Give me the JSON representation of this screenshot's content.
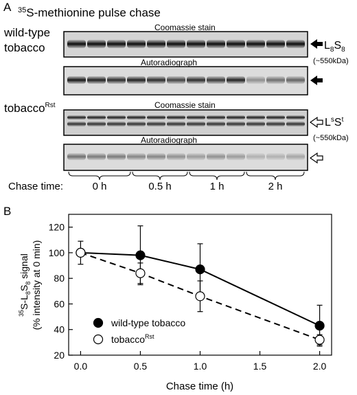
{
  "panel_a": {
    "label": "A",
    "title_sup": "35",
    "title_rest": "S-methionine pulse chase",
    "wildtype_line1": "wild-type",
    "wildtype_line2": "tobacco",
    "mutant_base": "tobacco",
    "mutant_sup": "Rst",
    "strip_labels": [
      "Coomassie stain",
      "Autoradiograph",
      "Coomassie stain",
      "Autoradiograph"
    ],
    "marker_wt_L": "L",
    "marker_wt_sub": "8",
    "marker_wt_S": "S",
    "marker_mut_L": "L",
    "marker_mut_sup1": "s",
    "marker_mut_S": "S",
    "marker_mut_sup2": "t",
    "size_label": "(~550kDa)",
    "chase_label": "Chase time:",
    "chase_groups": [
      "0 h",
      "0.5 h",
      "1 h",
      "2 h"
    ],
    "band_intensity": {
      "wt_coomassie": [
        0.95,
        0.95,
        0.95,
        0.95,
        0.95,
        0.95,
        0.95,
        0.95,
        0.95,
        0.95,
        0.95,
        0.95
      ],
      "wt_autoradiograph": [
        0.9,
        0.85,
        0.8,
        0.85,
        0.8,
        0.7,
        0.8,
        0.75,
        0.85,
        0.35,
        0.5,
        0.55
      ],
      "mut_coomassie": [
        0.85,
        0.85,
        0.85,
        0.85,
        0.85,
        0.85,
        0.85,
        0.85,
        0.85,
        0.85,
        0.85,
        0.85
      ],
      "mut_autoradiograph": [
        0.5,
        0.45,
        0.45,
        0.4,
        0.4,
        0.35,
        0.3,
        0.35,
        0.3,
        0.2,
        0.2,
        0.25
      ]
    }
  },
  "panel_b": {
    "label": "B"
  },
  "chart_data": {
    "type": "scatter",
    "ylabel_line1_sup": "35",
    "ylabel_line1_a": "S-L",
    "ylabel_line1_sub1": "8",
    "ylabel_line1_b": "S",
    "ylabel_line1_sub2": "8",
    "ylabel_line1_c": " signal",
    "ylabel_line2": "(% intensity at 0 min)",
    "xlabel": "Chase time (h)",
    "xlim": [
      -0.1,
      2.1
    ],
    "ylim": [
      20,
      130
    ],
    "xticks": [
      "0.0",
      "0.5",
      "1.0",
      "1.5",
      "2.0"
    ],
    "yticks": [
      "20",
      "40",
      "60",
      "80",
      "100",
      "120"
    ],
    "x": [
      0.0,
      0.5,
      1.0,
      2.0
    ],
    "series": [
      {
        "name": "wild-type tobacco",
        "values": [
          100,
          98,
          87,
          43
        ],
        "err": [
          0,
          23,
          20,
          16
        ],
        "marker": "filled-circle",
        "line": "solid",
        "color": "#000000"
      },
      {
        "name_base": "tobacco",
        "name_sup": "Rst",
        "values": [
          100,
          84,
          66,
          32
        ],
        "err": [
          9,
          8,
          12,
          4
        ],
        "marker": "open-circle",
        "line": "dashed",
        "color": "#000000"
      }
    ],
    "legend_position": "bottom-left",
    "grid": false
  }
}
